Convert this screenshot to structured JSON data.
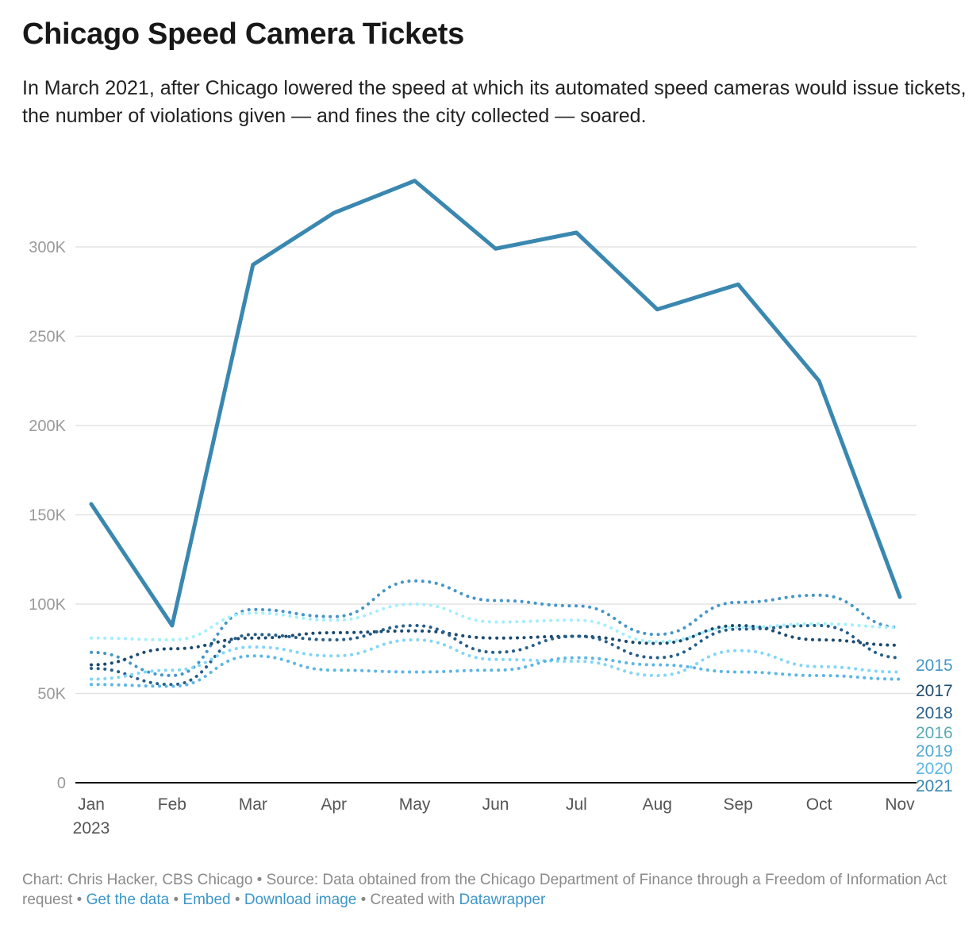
{
  "title": "Chicago Speed Camera Tickets",
  "subtitle": "In March 2021, after Chicago lowered the speed at which its automated speed cameras would issue tickets, the number of violations given — and fines the city collected — soared.",
  "footer": {
    "credit": "Chart: Chris Hacker, CBS Chicago • Source: Data obtained from the Chicago Department of Finance through a Freedom of Information Act request • ",
    "link_data": "Get the data",
    "sep1": " • ",
    "link_embed": "Embed",
    "sep2": " • ",
    "link_download": "Download image",
    "created": " • Created with ",
    "link_dw": "Datawrapper"
  },
  "chart_data": {
    "type": "line",
    "title": "Chicago Speed Camera Tickets",
    "categories": [
      "Jan",
      "Feb",
      "Mar",
      "Apr",
      "May",
      "Jun",
      "Jul",
      "Aug",
      "Sep",
      "Oct",
      "Nov"
    ],
    "x_sublabel": "2023",
    "ylim": [
      0,
      340000
    ],
    "yticks": [
      0,
      50000,
      100000,
      150000,
      200000,
      250000,
      300000
    ],
    "ytick_labels": [
      "0",
      "50K",
      "100K",
      "150K",
      "200K",
      "250K",
      "300K"
    ],
    "grid": true,
    "legend": "right-end labels",
    "series": [
      {
        "name": "2015",
        "color": "#4596c6",
        "label_color": "#4596c6",
        "style": "dotted",
        "values": [
          73000,
          60000,
          97000,
          93000,
          113000,
          102000,
          99000,
          83000,
          101000,
          105000,
          87000
        ]
      },
      {
        "name": "2017",
        "color": "#1c4a6e",
        "label_color": "#1c4a6e",
        "style": "dotted",
        "values": [
          66000,
          75000,
          81000,
          84000,
          85000,
          81000,
          82000,
          78000,
          88000,
          80000,
          77000
        ]
      },
      {
        "name": "2018",
        "color": "#275f88",
        "label_color": "#275f88",
        "style": "dotted",
        "values": [
          64000,
          55000,
          83000,
          80000,
          88000,
          73000,
          82000,
          70000,
          86000,
          88000,
          70000
        ]
      },
      {
        "name": "2016",
        "color": "#a2effc",
        "label_color": "#5aaab4",
        "style": "dotted",
        "values": [
          81000,
          80000,
          95000,
          91000,
          100000,
          90000,
          91000,
          79000,
          87000,
          89000,
          87000
        ]
      },
      {
        "name": "2019",
        "color": "#82d6f7",
        "label_color": "#52a8d0",
        "style": "dotted",
        "values": [
          58000,
          63000,
          76000,
          71000,
          80000,
          69000,
          68000,
          60000,
          74000,
          65000,
          62000
        ]
      },
      {
        "name": "2020",
        "color": "#5cb6e4",
        "label_color": "#5cb6e4",
        "style": "dotted",
        "values": [
          55000,
          54000,
          71000,
          63000,
          62000,
          63000,
          70000,
          66000,
          62000,
          60000,
          58000
        ]
      },
      {
        "name": "2021",
        "color": "#3a87b0",
        "label_color": "#3a87b0",
        "style": "solid",
        "values": [
          156000,
          88000,
          290000,
          319000,
          337000,
          299000,
          308000,
          265000,
          279000,
          225000,
          104000
        ]
      }
    ]
  }
}
